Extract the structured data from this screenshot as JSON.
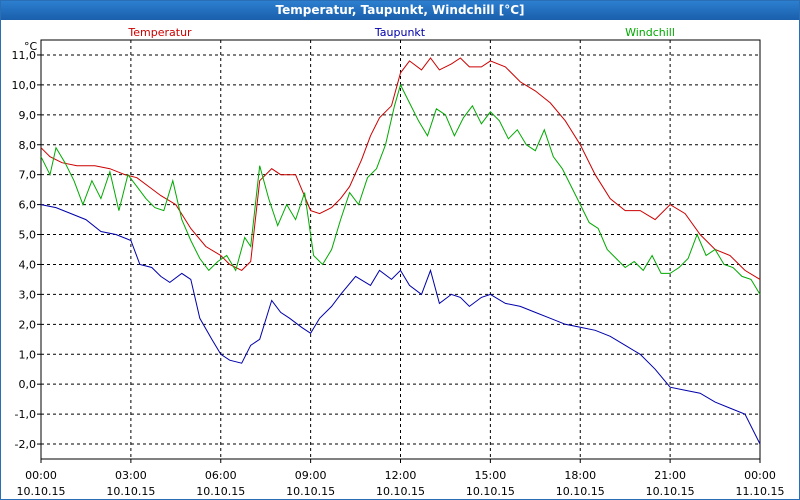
{
  "window": {
    "title": "Temperatur, Taupunkt, Windchill [°C]"
  },
  "chart_data": {
    "type": "line",
    "title": "Temperatur, Taupunkt, Windchill [°C]",
    "ylabel": "°C",
    "ylim": [
      -2.5,
      11.5
    ],
    "xlim": [
      0,
      24
    ],
    "grid": true,
    "yticks": [
      -2,
      -1,
      0,
      1,
      2,
      3,
      4,
      5,
      6,
      7,
      8,
      9,
      10,
      11
    ],
    "ytick_labels": [
      "-2,0",
      "-1,0",
      "0,0",
      "1,0",
      "2,0",
      "3,0",
      "4,0",
      "5,0",
      "6,0",
      "7,0",
      "8,0",
      "9,0",
      "10,0",
      "11,0"
    ],
    "xticks": [
      0,
      3,
      6,
      9,
      12,
      15,
      18,
      21,
      24
    ],
    "xtick_times": [
      "00:00",
      "03:00",
      "06:00",
      "09:00",
      "12:00",
      "15:00",
      "18:00",
      "21:00",
      "00:00"
    ],
    "xtick_dates": [
      "10.10.15",
      "10.10.15",
      "10.10.15",
      "10.10.15",
      "10.10.15",
      "10.10.15",
      "10.10.15",
      "10.10.15",
      "11.10.15"
    ],
    "series": [
      {
        "name": "Temperatur",
        "color": "#cc0000",
        "x": [
          0,
          0.3,
          0.7,
          1.2,
          1.8,
          2.3,
          2.8,
          3.2,
          3.6,
          4.0,
          4.5,
          5.0,
          5.5,
          6.0,
          6.3,
          6.7,
          7.0,
          7.3,
          7.7,
          8.0,
          8.5,
          9.0,
          9.3,
          9.7,
          10.0,
          10.3,
          10.7,
          11.0,
          11.3,
          11.7,
          12.0,
          12.3,
          12.7,
          13.0,
          13.3,
          13.7,
          14.0,
          14.3,
          14.7,
          15.0,
          15.5,
          16.0,
          16.5,
          17.0,
          17.5,
          18.0,
          18.5,
          19.0,
          19.5,
          20.0,
          20.5,
          21.0,
          21.5,
          22.0,
          22.5,
          23.0,
          23.5,
          24.0
        ],
        "values": [
          7.9,
          7.6,
          7.4,
          7.3,
          7.3,
          7.2,
          7.0,
          6.9,
          6.6,
          6.3,
          6.0,
          5.2,
          4.6,
          4.3,
          4.0,
          3.8,
          4.1,
          6.8,
          7.2,
          7.0,
          7.0,
          5.8,
          5.7,
          5.9,
          6.2,
          6.6,
          7.5,
          8.3,
          8.9,
          9.3,
          10.4,
          10.8,
          10.5,
          10.9,
          10.5,
          10.7,
          10.9,
          10.6,
          10.6,
          10.8,
          10.6,
          10.1,
          9.8,
          9.4,
          8.8,
          8.0,
          7.0,
          6.2,
          5.8,
          5.8,
          5.5,
          6.0,
          5.7,
          5.0,
          4.5,
          4.3,
          3.8,
          3.5
        ]
      },
      {
        "name": "Taupunkt",
        "color": "#0000aa",
        "x": [
          0,
          0.5,
          1.0,
          1.5,
          2.0,
          2.5,
          3.0,
          3.3,
          3.7,
          4.0,
          4.3,
          4.7,
          5.0,
          5.3,
          5.7,
          6.0,
          6.3,
          6.7,
          7.0,
          7.3,
          7.7,
          8.0,
          8.3,
          8.7,
          9.0,
          9.3,
          9.7,
          10.0,
          10.5,
          11.0,
          11.3,
          11.7,
          12.0,
          12.3,
          12.7,
          13.0,
          13.3,
          13.7,
          14.0,
          14.3,
          14.7,
          15.0,
          15.5,
          16.0,
          16.5,
          17.0,
          17.5,
          18.0,
          18.5,
          19.0,
          19.5,
          20.0,
          20.5,
          21.0,
          21.5,
          22.0,
          22.5,
          23.0,
          23.5,
          24.0
        ],
        "values": [
          6.0,
          5.9,
          5.7,
          5.5,
          5.1,
          5.0,
          4.8,
          4.0,
          3.9,
          3.6,
          3.4,
          3.7,
          3.5,
          2.2,
          1.5,
          1.0,
          0.8,
          0.7,
          1.3,
          1.5,
          2.8,
          2.4,
          2.2,
          1.9,
          1.7,
          2.2,
          2.6,
          3.0,
          3.6,
          3.3,
          3.8,
          3.5,
          3.8,
          3.3,
          3.0,
          3.8,
          2.7,
          3.0,
          2.9,
          2.6,
          2.9,
          3.0,
          2.7,
          2.6,
          2.4,
          2.2,
          2.0,
          1.9,
          1.8,
          1.6,
          1.3,
          1.0,
          0.5,
          -0.1,
          -0.2,
          -0.3,
          -0.6,
          -0.8,
          -1.0,
          -2.0
        ]
      },
      {
        "name": "Windchill",
        "color": "#00aa00",
        "x": [
          0,
          0.3,
          0.5,
          0.8,
          1.1,
          1.4,
          1.7,
          2.0,
          2.3,
          2.6,
          2.9,
          3.2,
          3.5,
          3.8,
          4.1,
          4.4,
          4.7,
          5.0,
          5.3,
          5.6,
          5.9,
          6.2,
          6.5,
          6.8,
          7.0,
          7.3,
          7.6,
          7.9,
          8.2,
          8.5,
          8.8,
          9.1,
          9.4,
          9.7,
          10.0,
          10.3,
          10.6,
          10.9,
          11.2,
          11.5,
          11.8,
          12.0,
          12.3,
          12.6,
          12.9,
          13.2,
          13.5,
          13.8,
          14.1,
          14.4,
          14.7,
          15.0,
          15.3,
          15.6,
          15.9,
          16.2,
          16.5,
          16.8,
          17.1,
          17.4,
          17.7,
          18.0,
          18.3,
          18.6,
          18.9,
          19.2,
          19.5,
          19.8,
          20.1,
          20.4,
          20.7,
          21.0,
          21.3,
          21.6,
          21.9,
          22.2,
          22.5,
          22.8,
          23.1,
          23.4,
          23.7,
          24.0
        ],
        "values": [
          7.6,
          7.0,
          7.9,
          7.4,
          6.8,
          6.0,
          6.8,
          6.2,
          7.1,
          5.8,
          7.0,
          6.6,
          6.2,
          5.9,
          5.8,
          6.8,
          5.5,
          4.8,
          4.2,
          3.8,
          4.1,
          4.3,
          3.8,
          4.9,
          4.6,
          7.3,
          6.2,
          5.3,
          6.0,
          5.5,
          6.4,
          4.3,
          4.0,
          4.5,
          5.5,
          6.4,
          6.0,
          6.9,
          7.2,
          8.0,
          9.3,
          10.0,
          9.4,
          8.8,
          8.3,
          9.2,
          9.0,
          8.3,
          8.9,
          9.3,
          8.7,
          9.1,
          8.8,
          8.2,
          8.5,
          8.0,
          7.8,
          8.5,
          7.6,
          7.2,
          6.6,
          6.0,
          5.4,
          5.2,
          4.5,
          4.2,
          3.9,
          4.1,
          3.8,
          4.3,
          3.7,
          3.7,
          3.9,
          4.2,
          5.0,
          4.3,
          4.5,
          4.0,
          3.9,
          3.6,
          3.5,
          3.0
        ]
      }
    ]
  }
}
